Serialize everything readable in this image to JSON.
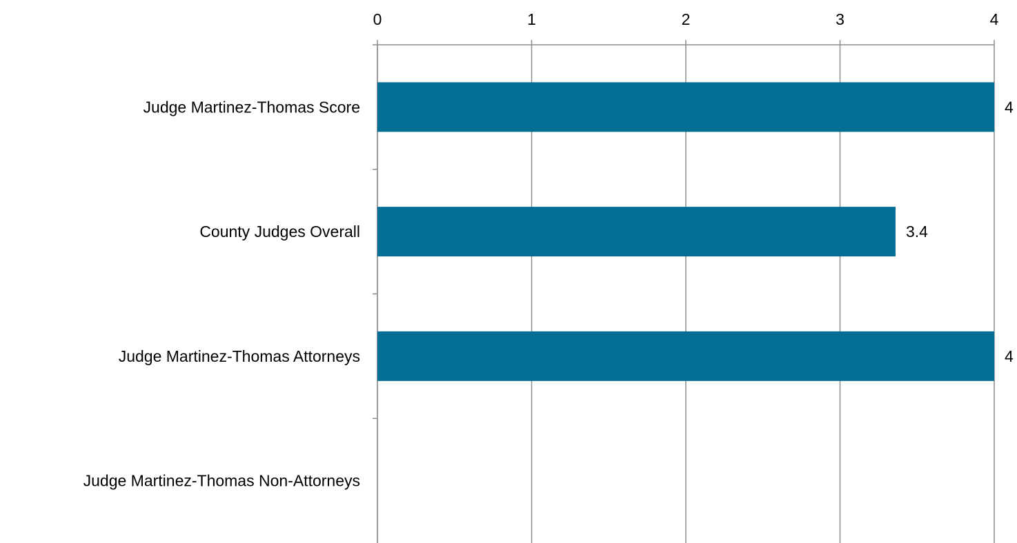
{
  "chart_data": {
    "type": "barh",
    "categories": [
      "Judge Martinez-Thomas Score",
      "County Judges Overall",
      "Judge Martinez-Thomas Attorneys",
      "Judge Martinez-Thomas Non-Attorneys"
    ],
    "values": [
      4,
      3.36,
      4,
      null
    ],
    "value_labels": [
      "4",
      "3.4",
      "4",
      null
    ],
    "color": "#036f94",
    "xlim": [
      0,
      4
    ],
    "xticks": [
      0,
      1,
      2,
      3,
      4
    ],
    "grid": true
  }
}
